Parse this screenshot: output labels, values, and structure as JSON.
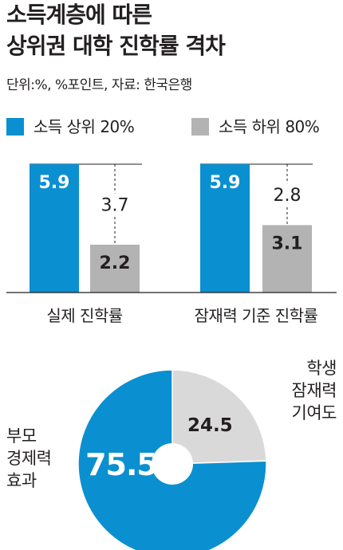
{
  "header": {
    "title_line1": "소득계층에 따른",
    "title_line2": "상위권 대학 진학률 격차",
    "unit_source": "단위:%, %포인트, 자료: 한국은행"
  },
  "colors": {
    "high_income": "#0a90d0",
    "low_income": "#b3b3b3",
    "pie_parent": "#0a90d0",
    "pie_student": "#d9d9d9"
  },
  "chart_data": [
    {
      "type": "bar",
      "categories": [
        "실제 진학률",
        "잠재력 기준 진학률"
      ],
      "series": [
        {
          "name": "소득 상위 20%",
          "values": [
            5.9,
            5.9
          ]
        },
        {
          "name": "소득 하위 80%",
          "values": [
            2.2,
            3.1
          ]
        }
      ],
      "gap_labels": [
        "3.7",
        "2.8"
      ],
      "value_labels": {
        "high": [
          "5.9",
          "5.9"
        ],
        "low": [
          "2.2",
          "3.1"
        ]
      },
      "legend_position": "top",
      "ylim": [
        0,
        5.9
      ],
      "grid": false
    },
    {
      "type": "pie",
      "style": "donut",
      "slices": [
        {
          "name": "부모 경제력 효과",
          "label_lines": [
            "부모",
            "경제력",
            "효과"
          ],
          "value": 75.5,
          "value_label": "75.5"
        },
        {
          "name": "학생 잠재력 기여도",
          "label_lines": [
            "학생",
            "잠재력",
            "기여도"
          ],
          "value": 24.5,
          "value_label": "24.5"
        }
      ]
    }
  ]
}
